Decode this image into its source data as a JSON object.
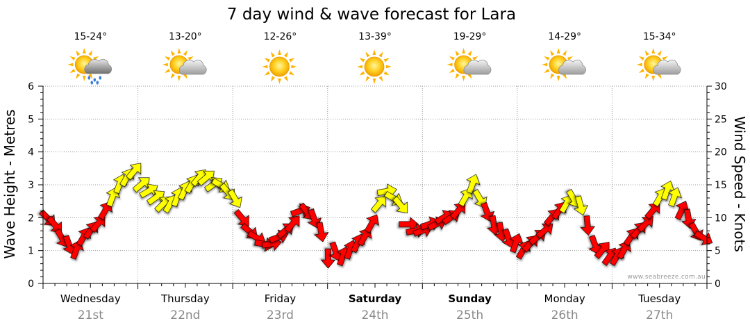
{
  "title": "7 day wind & wave forecast for Lara",
  "watermark": "www.seabreeze.com.au",
  "days": [
    {
      "name": "Wednesday",
      "date": "21st",
      "temp": "15-24°",
      "icon": "sun-cloud-rain-icon",
      "bold": false
    },
    {
      "name": "Thursday",
      "date": "22nd",
      "temp": "13-20°",
      "icon": "sun-cloud-icon",
      "bold": false
    },
    {
      "name": "Friday",
      "date": "23rd",
      "temp": "12-26°",
      "icon": "sun-icon",
      "bold": false
    },
    {
      "name": "Saturday",
      "date": "24th",
      "temp": "13-39°",
      "icon": "sun-icon",
      "bold": true
    },
    {
      "name": "Sunday",
      "date": "25th",
      "temp": "19-29°",
      "icon": "sun-cloud-icon",
      "bold": true
    },
    {
      "name": "Monday",
      "date": "26th",
      "temp": "14-29°",
      "icon": "sun-cloud-icon",
      "bold": false
    },
    {
      "name": "Tuesday",
      "date": "27th",
      "temp": "15-34°",
      "icon": "sun-cloud-icon",
      "bold": false
    }
  ],
  "colors": {
    "low": "#ff0000",
    "mid": "#ffff00",
    "moderate_fill": "#ffff00",
    "grid": "#999999"
  },
  "chart_data": {
    "type": "line",
    "title": "7 day wind & wave forecast for Lara",
    "y_left": {
      "label": "Wave Height - Metres",
      "ticks": [
        "0",
        "1",
        "2",
        "3",
        "4",
        "5",
        "6"
      ],
      "range": [
        0,
        6
      ]
    },
    "y_right": {
      "label": "Wind Speed - Knots",
      "ticks": [
        "0",
        "5",
        "10",
        "15",
        "20",
        "25",
        "30"
      ],
      "range": [
        0,
        30
      ]
    },
    "grid": true,
    "hours_step": 3,
    "wind_speed_knots": [
      10,
      9,
      7,
      6,
      5,
      7,
      8,
      9,
      11,
      13,
      15,
      16,
      17,
      15,
      14,
      13,
      12,
      12,
      13,
      14,
      15,
      16,
      16,
      15,
      15,
      14,
      13,
      10,
      8,
      7,
      6,
      6,
      7,
      8,
      9,
      11,
      11,
      10,
      8,
      4,
      5,
      4,
      5,
      6,
      7,
      9,
      12,
      14,
      13,
      12,
      9,
      8,
      8,
      9,
      9,
      10,
      10,
      11,
      13,
      15,
      13,
      11,
      9,
      8,
      7,
      6,
      5,
      6,
      7,
      8,
      10,
      11,
      12,
      13,
      12,
      9,
      6,
      5,
      4,
      4,
      5,
      7,
      8,
      9,
      11,
      13,
      14,
      13,
      11,
      10,
      8,
      7
    ],
    "wind_direction_deg": [
      315,
      320,
      330,
      340,
      200,
      210,
      215,
      220,
      210,
      200,
      200,
      210,
      220,
      230,
      240,
      235,
      225,
      210,
      200,
      205,
      210,
      220,
      230,
      235,
      300,
      320,
      330,
      320,
      310,
      300,
      280,
      260,
      250,
      230,
      220,
      250,
      320,
      340,
      350,
      0,
      340,
      200,
      200,
      205,
      210,
      210,
      220,
      260,
      300,
      320,
      270,
      260,
      250,
      250,
      245,
      240,
      235,
      220,
      210,
      200,
      330,
      340,
      350,
      350,
      340,
      200,
      210,
      220,
      230,
      230,
      220,
      215,
      210,
      330,
      345,
      355,
      340,
      220,
      215,
      210,
      210,
      215,
      220,
      225,
      220,
      210,
      200,
      200,
      205,
      350,
      330,
      300
    ]
  }
}
